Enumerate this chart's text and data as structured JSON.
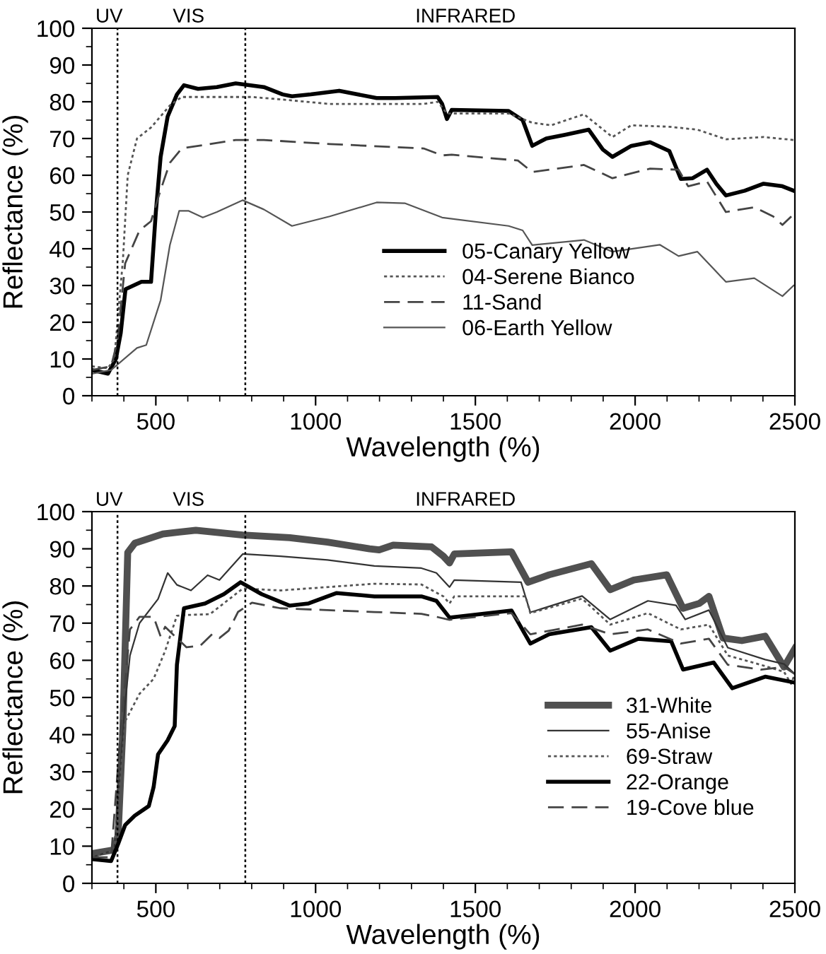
{
  "chart_data": [
    {
      "type": "line",
      "xlabel": "Wavelength (%)",
      "ylabel": "Reflectance (%)",
      "xlim": [
        300,
        2500
      ],
      "xticks": [
        500,
        1000,
        1500,
        2000,
        2500
      ],
      "ylim": [
        0,
        100
      ],
      "yticks": [
        0,
        10,
        20,
        30,
        40,
        50,
        60,
        70,
        80,
        90,
        100
      ],
      "legend": "bottom right",
      "ref_lines": [
        {
          "axis": "x",
          "value": 380,
          "color": "#000000",
          "line_style": "dotted"
        },
        {
          "axis": "x",
          "value": 780,
          "color": "#000000",
          "line_style": "dotted"
        }
      ],
      "annotations": [
        "UV",
        "VIS",
        "INFRARED"
      ],
      "series": [
        {
          "name": "05-Canary Yellow",
          "color": "#000000",
          "line_style": "solid",
          "x": [
            300,
            350,
            375,
            390,
            405,
            455,
            485,
            500,
            515,
            537,
            566,
            588,
            632,
            691,
            750,
            838,
            897,
            926,
            985,
            1074,
            1191,
            1249,
            1382,
            1396,
            1411,
            1426,
            1604,
            1648,
            1678,
            1722,
            1781,
            1855,
            1899,
            1929,
            1988,
            2047,
            2107,
            2143,
            2180,
            2225,
            2254,
            2284,
            2343,
            2402,
            2461,
            2496
          ],
          "values": [
            7,
            6,
            10,
            17,
            29,
            31,
            31,
            50,
            65,
            76,
            82,
            84.5,
            83.5,
            84,
            85,
            84,
            82,
            81.5,
            82,
            83,
            81,
            81,
            81.3,
            79.4,
            75.3,
            77.8,
            77.5,
            75,
            68,
            70,
            71,
            72.4,
            67,
            65,
            68,
            69,
            66.6,
            59,
            59.2,
            61.5,
            57.7,
            54.5,
            55.8,
            57.7,
            57,
            55.8
          ]
        },
        {
          "name": "04-Serene Bianco",
          "color": "#555555",
          "line_style": "dotted",
          "x": [
            300,
            350,
            370,
            397,
            412,
            441,
            485,
            544,
            581,
            800,
            897,
            1044,
            1338,
            1382,
            1411,
            1604,
            1678,
            1737,
            1840,
            1929,
            1988,
            2107,
            2195,
            2284,
            2402,
            2496
          ],
          "values": [
            8,
            7.5,
            10,
            37,
            60,
            70,
            73,
            79,
            81.3,
            81.3,
            80.6,
            79.4,
            79.4,
            80,
            76.8,
            76.8,
            74.3,
            73.6,
            76.6,
            70.4,
            73.6,
            73.2,
            72.4,
            69.8,
            70.4,
            69.6
          ]
        },
        {
          "name": "11-Sand",
          "color": "#444444",
          "line_style": "dashed",
          "x": [
            300,
            360,
            380,
            404,
            449,
            485,
            515,
            544,
            581,
            750,
            838,
            1044,
            1338,
            1396,
            1426,
            1633,
            1678,
            1840,
            1929,
            2047,
            2136,
            2166,
            2225,
            2284,
            2373,
            2432,
            2461,
            2496
          ],
          "values": [
            7,
            8,
            15,
            36,
            45,
            47.5,
            56,
            63.4,
            67.3,
            69.6,
            69.6,
            68.5,
            67.3,
            65.4,
            65.6,
            64,
            60.9,
            62.8,
            59.2,
            61.8,
            61.5,
            57,
            58.3,
            50,
            51.3,
            48.8,
            46.5,
            49.4
          ]
        },
        {
          "name": "06-Earth Yellow",
          "color": "#555555",
          "line_style": "solid",
          "x": [
            300,
            360,
            441,
            470,
            515,
            544,
            573,
            603,
            647,
            691,
            772,
            838,
            926,
            1044,
            1191,
            1279,
            1396,
            1604,
            1648,
            1678,
            1840,
            1929,
            2077,
            2136,
            2195,
            2284,
            2373,
            2461,
            2496
          ],
          "values": [
            6,
            7,
            13,
            13.8,
            26,
            41,
            50.3,
            50.3,
            48.5,
            50,
            53.2,
            50.7,
            46.2,
            48.8,
            52.6,
            52.4,
            48.5,
            46.2,
            45,
            41,
            42.4,
            39.2,
            41.1,
            38,
            39.2,
            31,
            32,
            27.1,
            30
          ]
        }
      ]
    },
    {
      "type": "line",
      "xlabel": "Wavelength (%)",
      "ylabel": "Reflectance (%)",
      "xlim": [
        300,
        2500
      ],
      "xticks": [
        500,
        1000,
        1500,
        2000,
        2500
      ],
      "ylim": [
        0,
        100
      ],
      "yticks": [
        0,
        10,
        20,
        30,
        40,
        50,
        60,
        70,
        80,
        90,
        100
      ],
      "legend": "bottom right",
      "ref_lines": [
        {
          "axis": "x",
          "value": 380,
          "color": "#000000",
          "line_style": "dotted"
        },
        {
          "axis": "x",
          "value": 780,
          "color": "#000000",
          "line_style": "dotted"
        }
      ],
      "annotations": [
        "UV",
        "VIS",
        "INFRARED"
      ],
      "series": [
        {
          "name": "31-White",
          "color": "#505050",
          "line_style": "solid",
          "x": [
            300,
            370,
            382,
            397,
            412,
            434,
            522,
            625,
            772,
            919,
            1037,
            1169,
            1199,
            1243,
            1363,
            1400,
            1419,
            1434,
            1613,
            1665,
            1731,
            1863,
            1922,
            1996,
            2099,
            2150,
            2201,
            2231,
            2275,
            2334,
            2407,
            2466,
            2500
          ],
          "values": [
            8,
            9,
            13,
            42,
            89,
            91.5,
            94,
            95,
            93.7,
            93,
            91.8,
            90,
            89.7,
            91,
            90.5,
            88,
            86.2,
            88.6,
            89.2,
            81,
            83,
            86,
            79,
            81.6,
            83,
            74,
            75.3,
            77.2,
            66,
            65.3,
            66.5,
            58.2,
            63.2
          ]
        },
        {
          "name": "55-Anise",
          "color": "#333333",
          "line_style": "solid",
          "x": [
            300,
            370,
            404,
            419,
            449,
            507,
            537,
            566,
            610,
            662,
            699,
            772,
            890,
            1037,
            1184,
            1331,
            1378,
            1419,
            1434,
            1643,
            1672,
            1834,
            1922,
            2040,
            2128,
            2157,
            2231,
            2290,
            2407,
            2466,
            2500
          ],
          "values": [
            7,
            9,
            48.7,
            61.3,
            70,
            76.5,
            83.5,
            80.3,
            78.8,
            82.9,
            81.6,
            88.6,
            88,
            87,
            85.4,
            84.8,
            83.5,
            79.7,
            81.6,
            81,
            72.9,
            77.3,
            71,
            76,
            74.8,
            71,
            73.5,
            63.4,
            60.2,
            59,
            56.3
          ]
        },
        {
          "name": "69-Straw",
          "color": "#555555",
          "line_style": "dotted",
          "x": [
            300,
            370,
            404,
            449,
            493,
            529,
            566,
            596,
            669,
            772,
            890,
            1184,
            1331,
            1400,
            1419,
            1434,
            1657,
            1672,
            1834,
            1922,
            2040,
            2143,
            2231,
            2290,
            2393,
            2466,
            2488,
            2500
          ],
          "values": [
            7,
            9,
            43.6,
            51,
            55,
            62.5,
            72,
            72.2,
            72.4,
            79.3,
            78.8,
            80.6,
            80.4,
            77.2,
            75.3,
            77.2,
            77.2,
            72.7,
            76.6,
            69.6,
            72.7,
            68.3,
            69.6,
            61.3,
            58.8,
            56.9,
            53.7,
            56.3
          ]
        },
        {
          "name": "22-Orange",
          "color": "#000000",
          "line_style": "solid",
          "x": [
            300,
            360,
            382,
            404,
            434,
            478,
            493,
            507,
            537,
            559,
            566,
            588,
            654,
            713,
            765,
            831,
            919,
            978,
            1066,
            1184,
            1331,
            1378,
            1419,
            1613,
            1672,
            1731,
            1863,
            1922,
            2010,
            2113,
            2150,
            2246,
            2304,
            2407,
            2500
          ],
          "values": [
            6.5,
            6,
            10.6,
            15.7,
            18.2,
            20.8,
            25.9,
            34.7,
            38.5,
            42.3,
            58.8,
            74,
            75.3,
            77.8,
            81,
            77.8,
            74.7,
            75.3,
            78.1,
            77.2,
            77.2,
            76,
            71.5,
            73.4,
            64.5,
            67,
            68.9,
            62.6,
            65.8,
            65.1,
            57.5,
            59.4,
            52.5,
            55.6,
            54
          ]
        },
        {
          "name": "19-Cove blue",
          "color": "#444444",
          "line_style": "dashed",
          "x": [
            300,
            360,
            390,
            419,
            449,
            493,
            515,
            529,
            596,
            640,
            676,
            699,
            728,
            757,
            801,
            890,
            1037,
            1184,
            1331,
            1378,
            1419,
            1613,
            1672,
            1834,
            1922,
            2040,
            2143,
            2231,
            2290,
            2393,
            2466,
            2500
          ],
          "values": [
            7,
            7,
            41,
            68.3,
            71.7,
            71.7,
            66.4,
            69,
            63.5,
            64,
            67,
            66,
            68,
            73,
            75.5,
            74,
            73.5,
            73,
            72.5,
            71.7,
            70.9,
            72.7,
            67,
            69.6,
            67,
            68.3,
            64.5,
            65.8,
            58.8,
            57.5,
            58.2,
            56.3
          ]
        }
      ]
    }
  ]
}
